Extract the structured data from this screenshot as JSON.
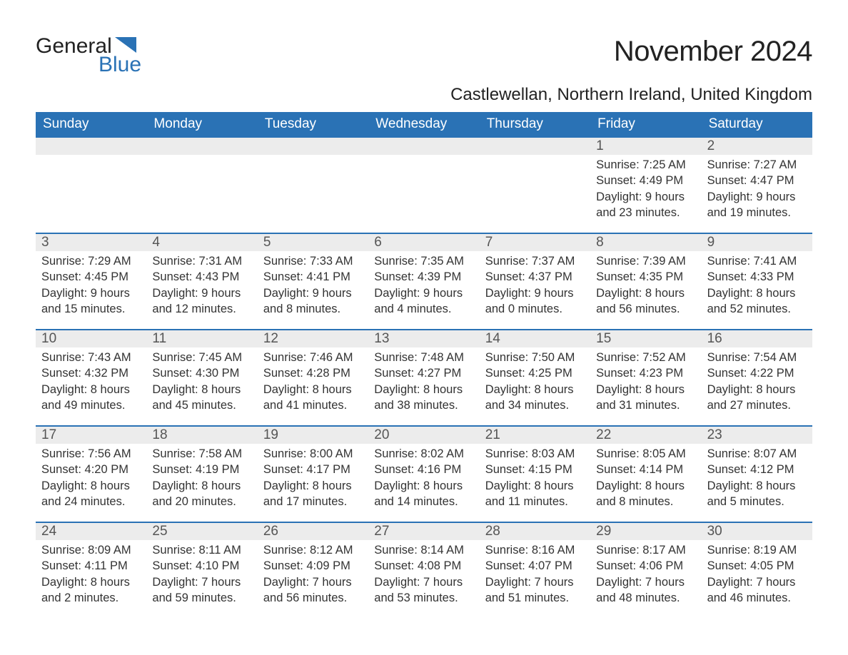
{
  "logo": {
    "word1": "General",
    "word2": "Blue",
    "flag_color": "#2a72b5",
    "text_dark": "#222222"
  },
  "title": "November 2024",
  "location": "Castlewellan, Northern Ireland, United Kingdom",
  "colors": {
    "header_bg": "#2a72b5",
    "header_text": "#ffffff",
    "daynum_bg": "#ececec",
    "daynum_text": "#555555",
    "body_text": "#333333",
    "rule": "#2a72b5",
    "page_bg": "#ffffff"
  },
  "fonts": {
    "title_pt": 40,
    "location_pt": 24,
    "weekday_pt": 19,
    "daynum_pt": 19,
    "body_pt": 16.5
  },
  "weekdays": [
    "Sunday",
    "Monday",
    "Tuesday",
    "Wednesday",
    "Thursday",
    "Friday",
    "Saturday"
  ],
  "leading_blanks": 5,
  "days": [
    {
      "n": "1",
      "sunrise": "Sunrise: 7:25 AM",
      "sunset": "Sunset: 4:49 PM",
      "day1": "Daylight: 9 hours",
      "day2": "and 23 minutes."
    },
    {
      "n": "2",
      "sunrise": "Sunrise: 7:27 AM",
      "sunset": "Sunset: 4:47 PM",
      "day1": "Daylight: 9 hours",
      "day2": "and 19 minutes."
    },
    {
      "n": "3",
      "sunrise": "Sunrise: 7:29 AM",
      "sunset": "Sunset: 4:45 PM",
      "day1": "Daylight: 9 hours",
      "day2": "and 15 minutes."
    },
    {
      "n": "4",
      "sunrise": "Sunrise: 7:31 AM",
      "sunset": "Sunset: 4:43 PM",
      "day1": "Daylight: 9 hours",
      "day2": "and 12 minutes."
    },
    {
      "n": "5",
      "sunrise": "Sunrise: 7:33 AM",
      "sunset": "Sunset: 4:41 PM",
      "day1": "Daylight: 9 hours",
      "day2": "and 8 minutes."
    },
    {
      "n": "6",
      "sunrise": "Sunrise: 7:35 AM",
      "sunset": "Sunset: 4:39 PM",
      "day1": "Daylight: 9 hours",
      "day2": "and 4 minutes."
    },
    {
      "n": "7",
      "sunrise": "Sunrise: 7:37 AM",
      "sunset": "Sunset: 4:37 PM",
      "day1": "Daylight: 9 hours",
      "day2": "and 0 minutes."
    },
    {
      "n": "8",
      "sunrise": "Sunrise: 7:39 AM",
      "sunset": "Sunset: 4:35 PM",
      "day1": "Daylight: 8 hours",
      "day2": "and 56 minutes."
    },
    {
      "n": "9",
      "sunrise": "Sunrise: 7:41 AM",
      "sunset": "Sunset: 4:33 PM",
      "day1": "Daylight: 8 hours",
      "day2": "and 52 minutes."
    },
    {
      "n": "10",
      "sunrise": "Sunrise: 7:43 AM",
      "sunset": "Sunset: 4:32 PM",
      "day1": "Daylight: 8 hours",
      "day2": "and 49 minutes."
    },
    {
      "n": "11",
      "sunrise": "Sunrise: 7:45 AM",
      "sunset": "Sunset: 4:30 PM",
      "day1": "Daylight: 8 hours",
      "day2": "and 45 minutes."
    },
    {
      "n": "12",
      "sunrise": "Sunrise: 7:46 AM",
      "sunset": "Sunset: 4:28 PM",
      "day1": "Daylight: 8 hours",
      "day2": "and 41 minutes."
    },
    {
      "n": "13",
      "sunrise": "Sunrise: 7:48 AM",
      "sunset": "Sunset: 4:27 PM",
      "day1": "Daylight: 8 hours",
      "day2": "and 38 minutes."
    },
    {
      "n": "14",
      "sunrise": "Sunrise: 7:50 AM",
      "sunset": "Sunset: 4:25 PM",
      "day1": "Daylight: 8 hours",
      "day2": "and 34 minutes."
    },
    {
      "n": "15",
      "sunrise": "Sunrise: 7:52 AM",
      "sunset": "Sunset: 4:23 PM",
      "day1": "Daylight: 8 hours",
      "day2": "and 31 minutes."
    },
    {
      "n": "16",
      "sunrise": "Sunrise: 7:54 AM",
      "sunset": "Sunset: 4:22 PM",
      "day1": "Daylight: 8 hours",
      "day2": "and 27 minutes."
    },
    {
      "n": "17",
      "sunrise": "Sunrise: 7:56 AM",
      "sunset": "Sunset: 4:20 PM",
      "day1": "Daylight: 8 hours",
      "day2": "and 24 minutes."
    },
    {
      "n": "18",
      "sunrise": "Sunrise: 7:58 AM",
      "sunset": "Sunset: 4:19 PM",
      "day1": "Daylight: 8 hours",
      "day2": "and 20 minutes."
    },
    {
      "n": "19",
      "sunrise": "Sunrise: 8:00 AM",
      "sunset": "Sunset: 4:17 PM",
      "day1": "Daylight: 8 hours",
      "day2": "and 17 minutes."
    },
    {
      "n": "20",
      "sunrise": "Sunrise: 8:02 AM",
      "sunset": "Sunset: 4:16 PM",
      "day1": "Daylight: 8 hours",
      "day2": "and 14 minutes."
    },
    {
      "n": "21",
      "sunrise": "Sunrise: 8:03 AM",
      "sunset": "Sunset: 4:15 PM",
      "day1": "Daylight: 8 hours",
      "day2": "and 11 minutes."
    },
    {
      "n": "22",
      "sunrise": "Sunrise: 8:05 AM",
      "sunset": "Sunset: 4:14 PM",
      "day1": "Daylight: 8 hours",
      "day2": "and 8 minutes."
    },
    {
      "n": "23",
      "sunrise": "Sunrise: 8:07 AM",
      "sunset": "Sunset: 4:12 PM",
      "day1": "Daylight: 8 hours",
      "day2": "and 5 minutes."
    },
    {
      "n": "24",
      "sunrise": "Sunrise: 8:09 AM",
      "sunset": "Sunset: 4:11 PM",
      "day1": "Daylight: 8 hours",
      "day2": "and 2 minutes."
    },
    {
      "n": "25",
      "sunrise": "Sunrise: 8:11 AM",
      "sunset": "Sunset: 4:10 PM",
      "day1": "Daylight: 7 hours",
      "day2": "and 59 minutes."
    },
    {
      "n": "26",
      "sunrise": "Sunrise: 8:12 AM",
      "sunset": "Sunset: 4:09 PM",
      "day1": "Daylight: 7 hours",
      "day2": "and 56 minutes."
    },
    {
      "n": "27",
      "sunrise": "Sunrise: 8:14 AM",
      "sunset": "Sunset: 4:08 PM",
      "day1": "Daylight: 7 hours",
      "day2": "and 53 minutes."
    },
    {
      "n": "28",
      "sunrise": "Sunrise: 8:16 AM",
      "sunset": "Sunset: 4:07 PM",
      "day1": "Daylight: 7 hours",
      "day2": "and 51 minutes."
    },
    {
      "n": "29",
      "sunrise": "Sunrise: 8:17 AM",
      "sunset": "Sunset: 4:06 PM",
      "day1": "Daylight: 7 hours",
      "day2": "and 48 minutes."
    },
    {
      "n": "30",
      "sunrise": "Sunrise: 8:19 AM",
      "sunset": "Sunset: 4:05 PM",
      "day1": "Daylight: 7 hours",
      "day2": "and 46 minutes."
    }
  ]
}
